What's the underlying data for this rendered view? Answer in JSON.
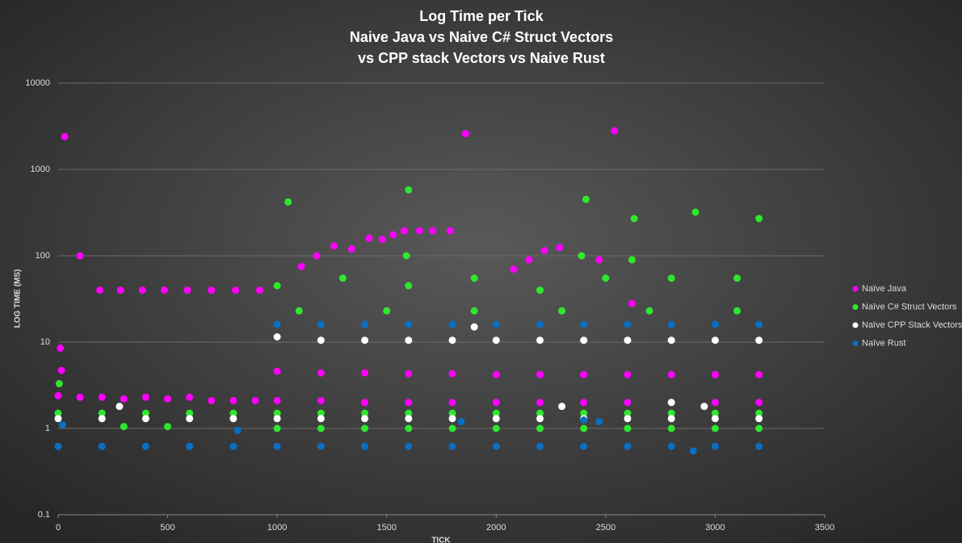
{
  "chart_data": {
    "type": "scatter",
    "title": [
      "Log Time per Tick",
      "Naive Java vs Naive C# Struct Vectors",
      "vs CPP stack Vectors vs Naive Rust"
    ],
    "x_label": "TICK",
    "y_label": "LOG TIME (MS)",
    "xlim": [
      0,
      3500
    ],
    "xticks": [
      0,
      500,
      1000,
      1500,
      2000,
      2500,
      3000,
      3500
    ],
    "ylim": [
      0.1,
      10000
    ],
    "yticks": [
      0.1,
      1,
      10,
      100,
      1000,
      10000
    ],
    "y_scale": "log",
    "grid": true,
    "legend": "right",
    "series": [
      {
        "name": "Naïve Java",
        "color": "#ff00ff",
        "x": [
          0,
          100,
          200,
          300,
          400,
          500,
          600,
          700,
          800,
          900,
          1000,
          1200,
          1400,
          1600,
          1800,
          2000,
          2200,
          2400,
          2600,
          2800,
          3000,
          3200,
          1000,
          1200,
          1400,
          1600,
          1800,
          2000,
          2200,
          2400,
          2600,
          2800,
          3000,
          3200,
          10,
          15,
          30,
          100,
          190,
          285,
          385,
          485,
          590,
          700,
          810,
          920,
          1110,
          1180,
          1260,
          1340,
          1420,
          1480,
          1530,
          1580,
          1650,
          1710,
          1790,
          1860,
          2080,
          2150,
          2220,
          2290,
          2470,
          2540,
          2620
        ],
        "values": [
          2.4,
          2.3,
          2.3,
          2.2,
          2.3,
          2.2,
          2.3,
          2.1,
          2.1,
          2.1,
          2.1,
          2.1,
          2.0,
          2.0,
          2.0,
          2.0,
          2.0,
          2.0,
          2.0,
          2.0,
          2.0,
          2.0,
          4.6,
          4.4,
          4.4,
          4.3,
          4.3,
          4.2,
          4.2,
          4.2,
          4.2,
          4.2,
          4.2,
          4.2,
          8.5,
          4.7,
          2400,
          100,
          40,
          40,
          40,
          40,
          40,
          40,
          40,
          40,
          75,
          100,
          130,
          120,
          160,
          155,
          175,
          195,
          195,
          195,
          195,
          2600,
          70,
          90,
          115,
          125,
          90,
          2800,
          28
        ]
      },
      {
        "name": "Naïve C# Struct Vectors",
        "color": "#2ee82e",
        "x": [
          0,
          200,
          400,
          600,
          800,
          1000,
          1200,
          1400,
          1600,
          1800,
          2000,
          2200,
          2400,
          2600,
          2800,
          3000,
          3200,
          300,
          500,
          1000,
          1200,
          1400,
          1600,
          1800,
          2000,
          2200,
          2400,
          2600,
          2800,
          3000,
          3200,
          1000,
          1300,
          1600,
          1900,
          2200,
          2500,
          2800,
          3100,
          1100,
          1500,
          1900,
          2300,
          2700,
          3100,
          5,
          1050,
          1590,
          1600,
          2390,
          2410,
          2620,
          2630,
          2910,
          3200
        ],
        "values": [
          1.5,
          1.5,
          1.5,
          1.5,
          1.5,
          1.5,
          1.5,
          1.5,
          1.5,
          1.5,
          1.5,
          1.5,
          1.5,
          1.5,
          1.5,
          1.5,
          1.5,
          1.05,
          1.05,
          1.0,
          1.0,
          1.0,
          1.0,
          1.0,
          1.0,
          1.0,
          1.0,
          1.0,
          1.0,
          1.0,
          1.0,
          45,
          55,
          45,
          55,
          40,
          55,
          55,
          55,
          23,
          23,
          23,
          23,
          23,
          23,
          3.3,
          420,
          100,
          580,
          100,
          450,
          90,
          270,
          320,
          270
        ]
      },
      {
        "name": "Naïve CPP Stack Vectors",
        "color": "#ffffff",
        "x": [
          0,
          200,
          400,
          600,
          800,
          1000,
          1200,
          1400,
          1600,
          1800,
          2000,
          2200,
          2400,
          2600,
          2800,
          3000,
          3200,
          1000,
          1200,
          1400,
          1600,
          1800,
          2000,
          2200,
          2400,
          2600,
          2800,
          3000,
          3200,
          280,
          2300,
          2800,
          2950,
          1900
        ],
        "values": [
          1.3,
          1.3,
          1.3,
          1.3,
          1.3,
          1.3,
          1.3,
          1.3,
          1.3,
          1.3,
          1.3,
          1.3,
          1.3,
          1.3,
          1.3,
          1.3,
          1.3,
          11.5,
          10.5,
          10.5,
          10.5,
          10.5,
          10.5,
          10.5,
          10.5,
          10.5,
          10.5,
          10.5,
          10.5,
          1.8,
          1.8,
          2.0,
          1.8,
          15
        ]
      },
      {
        "name": "Naïve Rust",
        "color": "#0a6fc2",
        "x": [
          0,
          200,
          400,
          600,
          800,
          1000,
          1200,
          1400,
          1600,
          1800,
          2000,
          2200,
          2400,
          2600,
          2800,
          3000,
          3200,
          1000,
          1200,
          1400,
          1600,
          1800,
          2000,
          2200,
          2400,
          2600,
          2800,
          3000,
          3200,
          20,
          820,
          1840,
          2400,
          2470,
          2900
        ],
        "values": [
          0.62,
          0.62,
          0.62,
          0.62,
          0.62,
          0.62,
          0.62,
          0.62,
          0.62,
          0.62,
          0.62,
          0.62,
          0.62,
          0.62,
          0.62,
          0.62,
          0.62,
          16,
          16,
          16,
          16,
          16,
          16,
          16,
          16,
          16,
          16,
          16,
          16,
          1.1,
          0.95,
          1.2,
          1.25,
          1.2,
          0.55
        ]
      }
    ]
  }
}
